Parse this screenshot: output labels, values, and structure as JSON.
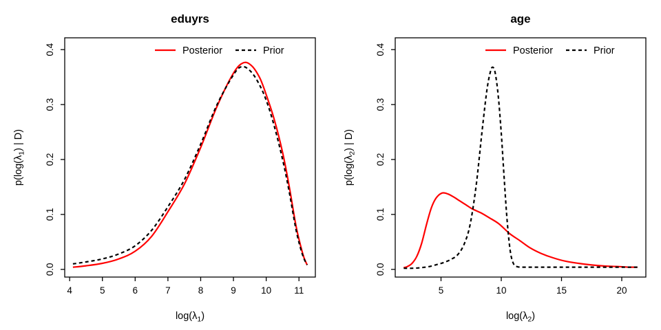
{
  "figure": {
    "background": "#ffffff",
    "panel_titles": [
      "eduyrs",
      "age"
    ]
  },
  "chart_data": [
    {
      "type": "line",
      "title": "eduyrs",
      "xlabel": {
        "pre": "log(λ",
        "sub": "1",
        "post": ")"
      },
      "ylabel": {
        "pre": "p(log(λ",
        "sub": "1",
        "post": ") | D)"
      },
      "xlim": [
        3.85,
        11.5
      ],
      "ylim": [
        -0.014,
        0.4215
      ],
      "xticks": [
        4,
        5,
        6,
        7,
        8,
        9,
        10,
        11
      ],
      "xtick_labels": [
        "4",
        "5",
        "6",
        "7",
        "8",
        "9",
        "10",
        "11"
      ],
      "yticks": [
        0.0,
        0.1,
        0.2,
        0.3,
        0.4
      ],
      "ytick_labels": [
        "0.0",
        "0.1",
        "0.2",
        "0.3",
        "0.4"
      ],
      "grid": false,
      "legend": {
        "position": "top-inside",
        "items": [
          {
            "label": "Posterior",
            "color": "#ff0000",
            "style": "solid"
          },
          {
            "label": "Prior",
            "color": "#000000",
            "style": "dashed"
          }
        ]
      },
      "series": [
        {
          "name": "Posterior",
          "color": "#ff0000",
          "style": "solid",
          "points": [
            [
              4.1,
              0.004
            ],
            [
              4.5,
              0.0065
            ],
            [
              5.0,
              0.011
            ],
            [
              5.5,
              0.019
            ],
            [
              6.0,
              0.033
            ],
            [
              6.5,
              0.06
            ],
            [
              7.0,
              0.105
            ],
            [
              7.5,
              0.155
            ],
            [
              8.0,
              0.222
            ],
            [
              8.5,
              0.297
            ],
            [
              9.0,
              0.357
            ],
            [
              9.3,
              0.376
            ],
            [
              9.55,
              0.371
            ],
            [
              9.8,
              0.349
            ],
            [
              10.0,
              0.318
            ],
            [
              10.25,
              0.272
            ],
            [
              10.5,
              0.213
            ],
            [
              10.7,
              0.152
            ],
            [
              10.9,
              0.082
            ],
            [
              11.05,
              0.043
            ],
            [
              11.15,
              0.022
            ],
            [
              11.25,
              0.008
            ]
          ]
        },
        {
          "name": "Prior",
          "color": "#000000",
          "style": "dashed",
          "points": [
            [
              4.1,
              0.01
            ],
            [
              4.5,
              0.0135
            ],
            [
              5.0,
              0.019
            ],
            [
              5.5,
              0.028
            ],
            [
              6.0,
              0.043
            ],
            [
              6.5,
              0.071
            ],
            [
              7.0,
              0.114
            ],
            [
              7.5,
              0.163
            ],
            [
              8.0,
              0.228
            ],
            [
              8.5,
              0.3
            ],
            [
              9.0,
              0.354
            ],
            [
              9.25,
              0.369
            ],
            [
              9.5,
              0.362
            ],
            [
              9.75,
              0.341
            ],
            [
              10.0,
              0.308
            ],
            [
              10.25,
              0.26
            ],
            [
              10.5,
              0.2
            ],
            [
              10.7,
              0.142
            ],
            [
              10.9,
              0.075
            ],
            [
              11.05,
              0.038
            ],
            [
              11.15,
              0.02
            ],
            [
              11.25,
              0.008
            ]
          ]
        }
      ]
    },
    {
      "type": "line",
      "title": "age",
      "xlabel": {
        "pre": "log(λ",
        "sub": "2",
        "post": ")"
      },
      "ylabel": {
        "pre": "p(log(λ",
        "sub": "2",
        "post": ") | D)"
      },
      "xlim": [
        1.2,
        22.0
      ],
      "ylim": [
        -0.014,
        0.4215
      ],
      "xticks": [
        5,
        10,
        15,
        20
      ],
      "xtick_labels": [
        "5",
        "10",
        "15",
        "20"
      ],
      "yticks": [
        0.0,
        0.1,
        0.2,
        0.3,
        0.4
      ],
      "ytick_labels": [
        "0.0",
        "0.1",
        "0.2",
        "0.3",
        "0.4"
      ],
      "grid": false,
      "legend": {
        "position": "top-inside",
        "items": [
          {
            "label": "Posterior",
            "color": "#ff0000",
            "style": "solid"
          },
          {
            "label": "Prior",
            "color": "#000000",
            "style": "dashed"
          }
        ]
      },
      "series": [
        {
          "name": "Posterior",
          "color": "#ff0000",
          "style": "solid",
          "points": [
            [
              1.9,
              0.003
            ],
            [
              2.2,
              0.005
            ],
            [
              2.6,
              0.011
            ],
            [
              3.0,
              0.024
            ],
            [
              3.4,
              0.048
            ],
            [
              3.8,
              0.082
            ],
            [
              4.2,
              0.112
            ],
            [
              4.6,
              0.13
            ],
            [
              5.1,
              0.139
            ],
            [
              5.6,
              0.137
            ],
            [
              6.1,
              0.131
            ],
            [
              6.6,
              0.124
            ],
            [
              7.1,
              0.117
            ],
            [
              7.6,
              0.11
            ],
            [
              8.3,
              0.103
            ],
            [
              9.0,
              0.094
            ],
            [
              9.8,
              0.083
            ],
            [
              10.7,
              0.065
            ],
            [
              11.5,
              0.053
            ],
            [
              12.4,
              0.039
            ],
            [
              13.3,
              0.029
            ],
            [
              14.3,
              0.021
            ],
            [
              15.3,
              0.015
            ],
            [
              16.4,
              0.011
            ],
            [
              17.5,
              0.008
            ],
            [
              18.6,
              0.006
            ],
            [
              19.8,
              0.005
            ],
            [
              20.6,
              0.004
            ],
            [
              21.3,
              0.004
            ]
          ]
        },
        {
          "name": "Prior",
          "color": "#000000",
          "style": "dashed",
          "points": [
            [
              1.9,
              0.002
            ],
            [
              2.6,
              0.002
            ],
            [
              3.3,
              0.003
            ],
            [
              4.0,
              0.005
            ],
            [
              4.7,
              0.009
            ],
            [
              5.3,
              0.013
            ],
            [
              5.9,
              0.019
            ],
            [
              6.4,
              0.027
            ],
            [
              6.9,
              0.045
            ],
            [
              7.4,
              0.08
            ],
            [
              7.9,
              0.15
            ],
            [
              8.4,
              0.25
            ],
            [
              8.8,
              0.325
            ],
            [
              9.1,
              0.36
            ],
            [
              9.3,
              0.368
            ],
            [
              9.5,
              0.357
            ],
            [
              9.75,
              0.316
            ],
            [
              10.0,
              0.248
            ],
            [
              10.25,
              0.163
            ],
            [
              10.5,
              0.085
            ],
            [
              10.75,
              0.033
            ],
            [
              11.0,
              0.011
            ],
            [
              11.3,
              0.005
            ],
            [
              11.8,
              0.004
            ],
            [
              13.0,
              0.004
            ],
            [
              15.0,
              0.004
            ],
            [
              17.0,
              0.004
            ],
            [
              19.0,
              0.004
            ],
            [
              20.5,
              0.004
            ],
            [
              21.3,
              0.004
            ]
          ]
        }
      ]
    }
  ]
}
